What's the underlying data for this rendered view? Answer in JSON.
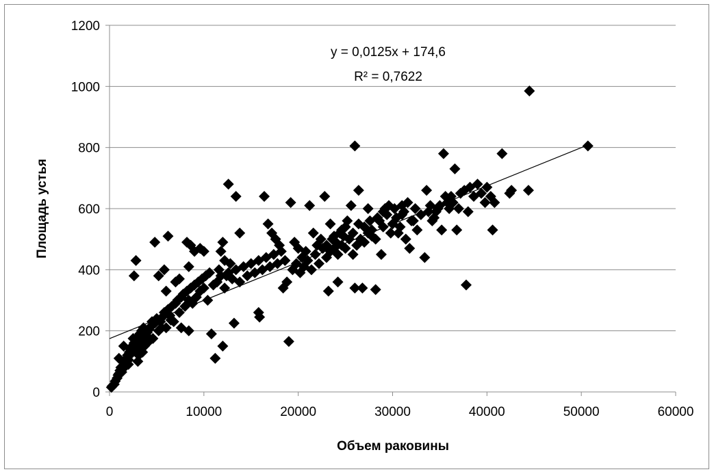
{
  "chart_data": {
    "type": "scatter",
    "xlabel": "Объем раковины",
    "ylabel": "Площадь устья",
    "xlim": [
      0,
      60000
    ],
    "ylim": [
      0,
      1200
    ],
    "x_ticks": [
      "0",
      "10000",
      "20000",
      "30000",
      "40000",
      "50000",
      "60000"
    ],
    "y_ticks": [
      "0",
      "200",
      "400",
      "600",
      "800",
      "1000",
      "1200"
    ],
    "grid": "horizontal",
    "marker": "diamond",
    "marker_color": "#000000",
    "trendline": {
      "slope": 0.0125,
      "intercept": 174.6,
      "x_range": [
        0,
        50700
      ],
      "equation": "y = 0,0125x + 174,6",
      "r_squared": "R² = 0,7622"
    },
    "points": [
      [
        200,
        15
      ],
      [
        300,
        20
      ],
      [
        500,
        25
      ],
      [
        600,
        35
      ],
      [
        800,
        45
      ],
      [
        900,
        55
      ],
      [
        1000,
        60
      ],
      [
        1100,
        70
      ],
      [
        1200,
        80
      ],
      [
        1300,
        65
      ],
      [
        1400,
        75
      ],
      [
        1500,
        85
      ],
      [
        1600,
        95
      ],
      [
        1700,
        100
      ],
      [
        1800,
        110
      ],
      [
        1900,
        120
      ],
      [
        2000,
        105
      ],
      [
        2100,
        130
      ],
      [
        2200,
        140
      ],
      [
        2300,
        125
      ],
      [
        2400,
        150
      ],
      [
        2500,
        135
      ],
      [
        2600,
        160
      ],
      [
        2700,
        145
      ],
      [
        2800,
        170
      ],
      [
        2900,
        155
      ],
      [
        3000,
        180
      ],
      [
        3100,
        120
      ],
      [
        3200,
        190
      ],
      [
        3300,
        140
      ],
      [
        3400,
        200
      ],
      [
        3500,
        165
      ],
      [
        3600,
        210
      ],
      [
        3700,
        150
      ],
      [
        3800,
        175
      ],
      [
        3900,
        185
      ],
      [
        4000,
        195
      ],
      [
        4200,
        205
      ],
      [
        4400,
        215
      ],
      [
        4600,
        175
      ],
      [
        4800,
        225
      ],
      [
        5000,
        240
      ],
      [
        5200,
        200
      ],
      [
        5400,
        230
      ],
      [
        5600,
        245
      ],
      [
        5800,
        260
      ],
      [
        6000,
        210
      ],
      [
        6200,
        270
      ],
      [
        6400,
        250
      ],
      [
        6600,
        280
      ],
      [
        6800,
        230
      ],
      [
        7000,
        290
      ],
      [
        7200,
        300
      ],
      [
        7400,
        260
      ],
      [
        7600,
        310
      ],
      [
        7800,
        320
      ],
      [
        8000,
        280
      ],
      [
        8200,
        330
      ],
      [
        8400,
        300
      ],
      [
        8600,
        340
      ],
      [
        8800,
        290
      ],
      [
        9000,
        350
      ],
      [
        9200,
        310
      ],
      [
        9400,
        360
      ],
      [
        9600,
        330
      ],
      [
        9800,
        370
      ],
      [
        10000,
        340
      ],
      [
        10200,
        380
      ],
      [
        10400,
        300
      ],
      [
        10600,
        390
      ],
      [
        1000,
        110
      ],
      [
        1500,
        150
      ],
      [
        2000,
        90
      ],
      [
        2500,
        175
      ],
      [
        3000,
        100
      ],
      [
        3500,
        130
      ],
      [
        4000,
        160
      ],
      [
        4500,
        230
      ],
      [
        5500,
        210
      ],
      [
        6500,
        235
      ],
      [
        2600,
        380
      ],
      [
        2800,
        430
      ],
      [
        4800,
        490
      ],
      [
        5200,
        380
      ],
      [
        5800,
        400
      ],
      [
        6200,
        510
      ],
      [
        6000,
        330
      ],
      [
        7000,
        360
      ],
      [
        7400,
        370
      ],
      [
        8200,
        490
      ],
      [
        8400,
        410
      ],
      [
        8600,
        480
      ],
      [
        9000,
        460
      ],
      [
        9600,
        470
      ],
      [
        10000,
        460
      ],
      [
        8400,
        200
      ],
      [
        7600,
        210
      ],
      [
        11200,
        110
      ],
      [
        12000,
        150
      ],
      [
        10800,
        190
      ],
      [
        12600,
        680
      ],
      [
        13200,
        225
      ],
      [
        13400,
        640
      ],
      [
        13800,
        520
      ],
      [
        12000,
        490
      ],
      [
        11800,
        460
      ],
      [
        11600,
        400
      ],
      [
        12200,
        430
      ],
      [
        12400,
        380
      ],
      [
        12800,
        420
      ],
      [
        11000,
        350
      ],
      [
        11400,
        360
      ],
      [
        11800,
        380
      ],
      [
        12200,
        340
      ],
      [
        12600,
        390
      ],
      [
        13000,
        370
      ],
      [
        13400,
        400
      ],
      [
        13800,
        360
      ],
      [
        14200,
        410
      ],
      [
        14600,
        380
      ],
      [
        15000,
        420
      ],
      [
        15400,
        390
      ],
      [
        15800,
        430
      ],
      [
        16200,
        400
      ],
      [
        16600,
        440
      ],
      [
        17000,
        410
      ],
      [
        17400,
        450
      ],
      [
        17800,
        420
      ],
      [
        18200,
        460
      ],
      [
        18600,
        430
      ],
      [
        15800,
        260
      ],
      [
        15900,
        245
      ],
      [
        16400,
        640
      ],
      [
        16800,
        550
      ],
      [
        17200,
        520
      ],
      [
        17600,
        500
      ],
      [
        18000,
        480
      ],
      [
        18400,
        340
      ],
      [
        18800,
        360
      ],
      [
        19000,
        165
      ],
      [
        19200,
        620
      ],
      [
        19600,
        490
      ],
      [
        20000,
        470
      ],
      [
        20400,
        440
      ],
      [
        20800,
        460
      ],
      [
        21200,
        610
      ],
      [
        21600,
        520
      ],
      [
        22000,
        480
      ],
      [
        22400,
        500
      ],
      [
        22800,
        640
      ],
      [
        19400,
        400
      ],
      [
        19800,
        420
      ],
      [
        20200,
        390
      ],
      [
        20600,
        410
      ],
      [
        21000,
        430
      ],
      [
        21400,
        400
      ],
      [
        21800,
        450
      ],
      [
        22200,
        420
      ],
      [
        22600,
        470
      ],
      [
        23000,
        440
      ],
      [
        23200,
        330
      ],
      [
        23400,
        550
      ],
      [
        23600,
        500
      ],
      [
        23800,
        470
      ],
      [
        24000,
        490
      ],
      [
        24200,
        360
      ],
      [
        24400,
        520
      ],
      [
        24600,
        480
      ],
      [
        24800,
        510
      ],
      [
        25000,
        540
      ],
      [
        23000,
        480
      ],
      [
        23400,
        460
      ],
      [
        23800,
        510
      ],
      [
        24200,
        450
      ],
      [
        24600,
        530
      ],
      [
        25000,
        470
      ],
      [
        25400,
        500
      ],
      [
        25800,
        520
      ],
      [
        26000,
        805
      ],
      [
        26200,
        480
      ],
      [
        25200,
        560
      ],
      [
        25600,
        610
      ],
      [
        26000,
        340
      ],
      [
        26400,
        660
      ],
      [
        26800,
        340
      ],
      [
        27000,
        540
      ],
      [
        27400,
        600
      ],
      [
        27800,
        510
      ],
      [
        28200,
        335
      ],
      [
        28400,
        570
      ],
      [
        26600,
        500
      ],
      [
        27000,
        490
      ],
      [
        27400,
        520
      ],
      [
        27800,
        530
      ],
      [
        28200,
        500
      ],
      [
        28600,
        560
      ],
      [
        29000,
        540
      ],
      [
        29400,
        580
      ],
      [
        29800,
        520
      ],
      [
        30200,
        600
      ],
      [
        28800,
        450
      ],
      [
        29200,
        600
      ],
      [
        29600,
        610
      ],
      [
        30000,
        550
      ],
      [
        30400,
        570
      ],
      [
        30800,
        540
      ],
      [
        31200,
        590
      ],
      [
        31600,
        620
      ],
      [
        32000,
        560
      ],
      [
        32400,
        600
      ],
      [
        30600,
        520
      ],
      [
        31000,
        580
      ],
      [
        31400,
        500
      ],
      [
        31800,
        470
      ],
      [
        32200,
        560
      ],
      [
        32600,
        530
      ],
      [
        33000,
        580
      ],
      [
        33400,
        440
      ],
      [
        33600,
        660
      ],
      [
        33800,
        590
      ],
      [
        34000,
        610
      ],
      [
        34400,
        570
      ],
      [
        34800,
        600
      ],
      [
        35200,
        530
      ],
      [
        35400,
        780
      ],
      [
        35800,
        620
      ],
      [
        36200,
        640
      ],
      [
        36600,
        730
      ],
      [
        36800,
        530
      ],
      [
        37000,
        600
      ],
      [
        34200,
        560
      ],
      [
        34600,
        590
      ],
      [
        35000,
        610
      ],
      [
        35600,
        640
      ],
      [
        36000,
        600
      ],
      [
        36400,
        620
      ],
      [
        37200,
        650
      ],
      [
        37600,
        660
      ],
      [
        37800,
        350
      ],
      [
        38000,
        590
      ],
      [
        38200,
        670
      ],
      [
        38600,
        640
      ],
      [
        39000,
        680
      ],
      [
        39400,
        650
      ],
      [
        39800,
        620
      ],
      [
        40000,
        670
      ],
      [
        40400,
        640
      ],
      [
        40600,
        530
      ],
      [
        40800,
        620
      ],
      [
        41600,
        780
      ],
      [
        42400,
        650
      ],
      [
        42600,
        660
      ],
      [
        44400,
        660
      ],
      [
        44500,
        985
      ],
      [
        50700,
        805
      ],
      [
        31000,
        610
      ],
      [
        29000,
        590
      ],
      [
        27600,
        560
      ],
      [
        26400,
        550
      ],
      [
        25800,
        450
      ]
    ]
  }
}
